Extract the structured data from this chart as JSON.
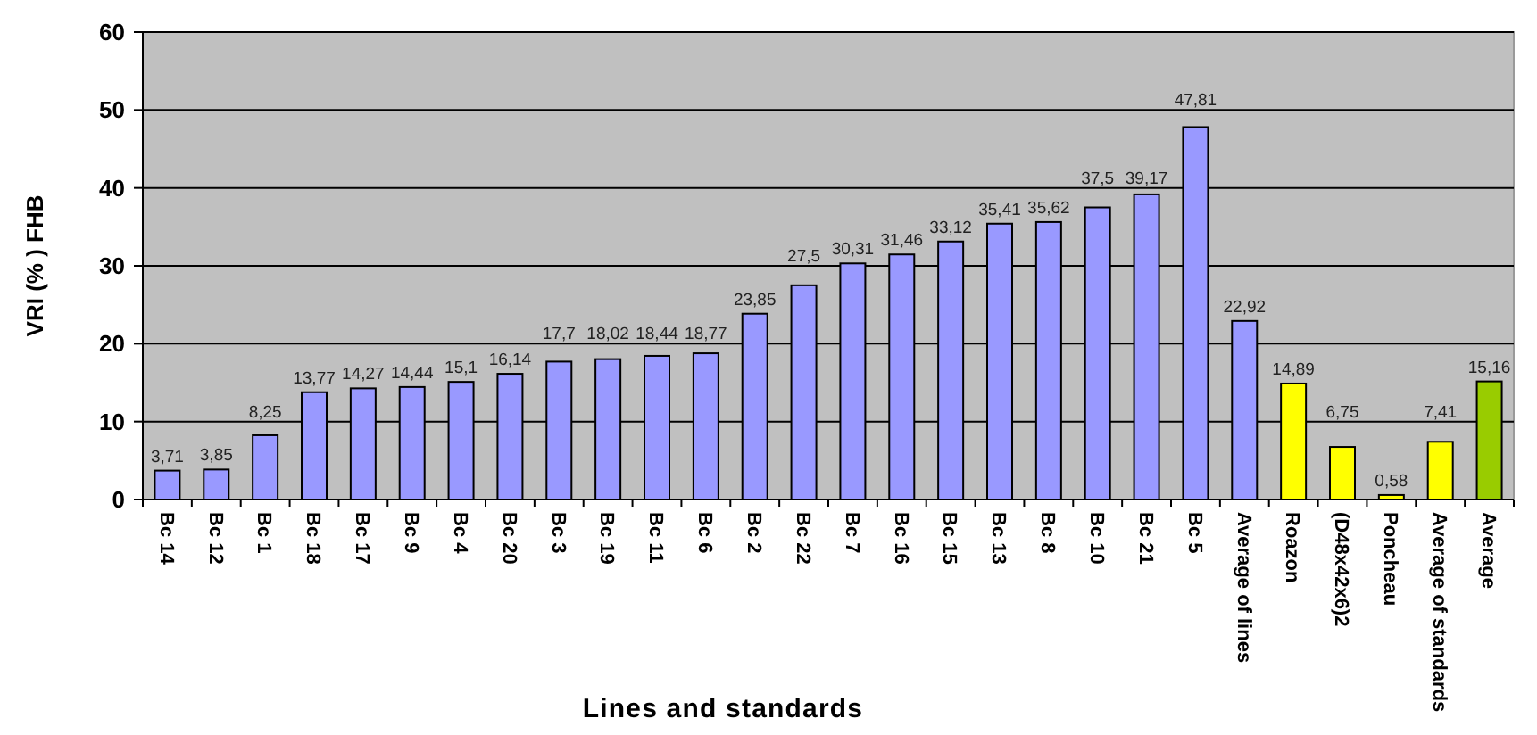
{
  "chart_data": {
    "type": "bar",
    "xlabel": "Lines and standards",
    "ylabel": "VRI (% ) FHB",
    "categories": [
      "Bc 14",
      "Bc 12",
      "Bc 1",
      "Bc 18",
      "Bc 17",
      "Bc 9",
      "Bc 4",
      "Bc 20",
      "Bc 3",
      "Bc 19",
      "Bc 11",
      "Bc 6",
      "Bc 2",
      "Bc 22",
      "Bc 7",
      "Bc 16",
      "Bc 15",
      "Bc 13",
      "Bc 8",
      "Bc 10",
      "Bc 21",
      "Bc 5",
      "Average of lines",
      "Roazon",
      "(D48x42x6)2",
      "Poncheau",
      "Average of standards",
      "Average"
    ],
    "values": [
      3.71,
      3.85,
      8.25,
      13.77,
      14.27,
      14.44,
      15.1,
      16.14,
      17.7,
      18.02,
      18.44,
      18.77,
      23.85,
      27.5,
      30.31,
      31.46,
      33.12,
      35.41,
      35.62,
      37.5,
      39.17,
      47.81,
      22.92,
      14.89,
      6.75,
      0.58,
      7.41,
      15.16
    ],
    "value_labels": [
      "3,71",
      "3,85",
      "8,25",
      "13,77",
      "14,27",
      "14,44",
      "15,1",
      "16,14",
      "17,7",
      "18,02",
      "18,44",
      "18,77",
      "23,85",
      "27,5",
      "30,31",
      "31,46",
      "33,12",
      "35,41",
      "35,62",
      "37,5",
      "39,17",
      "47,81",
      "22,92",
      "14,89",
      "6,75",
      "0,58",
      "7,41",
      "15,16"
    ],
    "colors": [
      "#9999ff",
      "#9999ff",
      "#9999ff",
      "#9999ff",
      "#9999ff",
      "#9999ff",
      "#9999ff",
      "#9999ff",
      "#9999ff",
      "#9999ff",
      "#9999ff",
      "#9999ff",
      "#9999ff",
      "#9999ff",
      "#9999ff",
      "#9999ff",
      "#9999ff",
      "#9999ff",
      "#9999ff",
      "#9999ff",
      "#9999ff",
      "#9999ff",
      "#9999ff",
      "#ffff00",
      "#ffff00",
      "#ffff00",
      "#ffff00",
      "#99cc00"
    ],
    "ylim": [
      0,
      60
    ],
    "yticks": [
      0,
      10,
      20,
      30,
      40,
      50,
      60
    ],
    "grid": "y"
  }
}
